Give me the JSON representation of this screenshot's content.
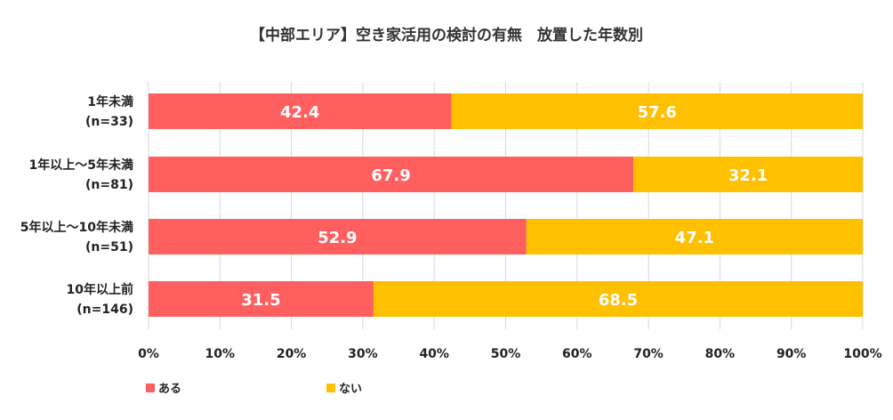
{
  "chart_data": {
    "type": "bar",
    "orientation": "horizontal",
    "stacked": true,
    "title": "【中部エリア】空き家活用の検討の有無　放置した年数別",
    "categories": [
      {
        "label": "1年未満",
        "n": "(n=33)"
      },
      {
        "label": "1年以上～5年未満",
        "n": "(n=81)"
      },
      {
        "label": "5年以上～10年未満",
        "n": "(n=51)"
      },
      {
        "label": "10年以上前",
        "n": "(n=146)"
      }
    ],
    "series": [
      {
        "name": "ある",
        "color": "#ff5f5f",
        "values": [
          42.4,
          67.9,
          52.9,
          31.5
        ],
        "labels": [
          "42.4",
          "67.9",
          "52.9",
          "31.5"
        ]
      },
      {
        "name": "ない",
        "color": "#ffc000",
        "values": [
          57.6,
          32.1,
          47.1,
          68.5
        ],
        "labels": [
          "57.6",
          "32.1",
          "47.1",
          "68.5"
        ]
      }
    ],
    "xlim": [
      0,
      100
    ],
    "xticks": [
      "0%",
      "10%",
      "20%",
      "30%",
      "40%",
      "50%",
      "60%",
      "70%",
      "80%",
      "90%",
      "100%"
    ],
    "legend": "bottom-left",
    "grid": true
  }
}
